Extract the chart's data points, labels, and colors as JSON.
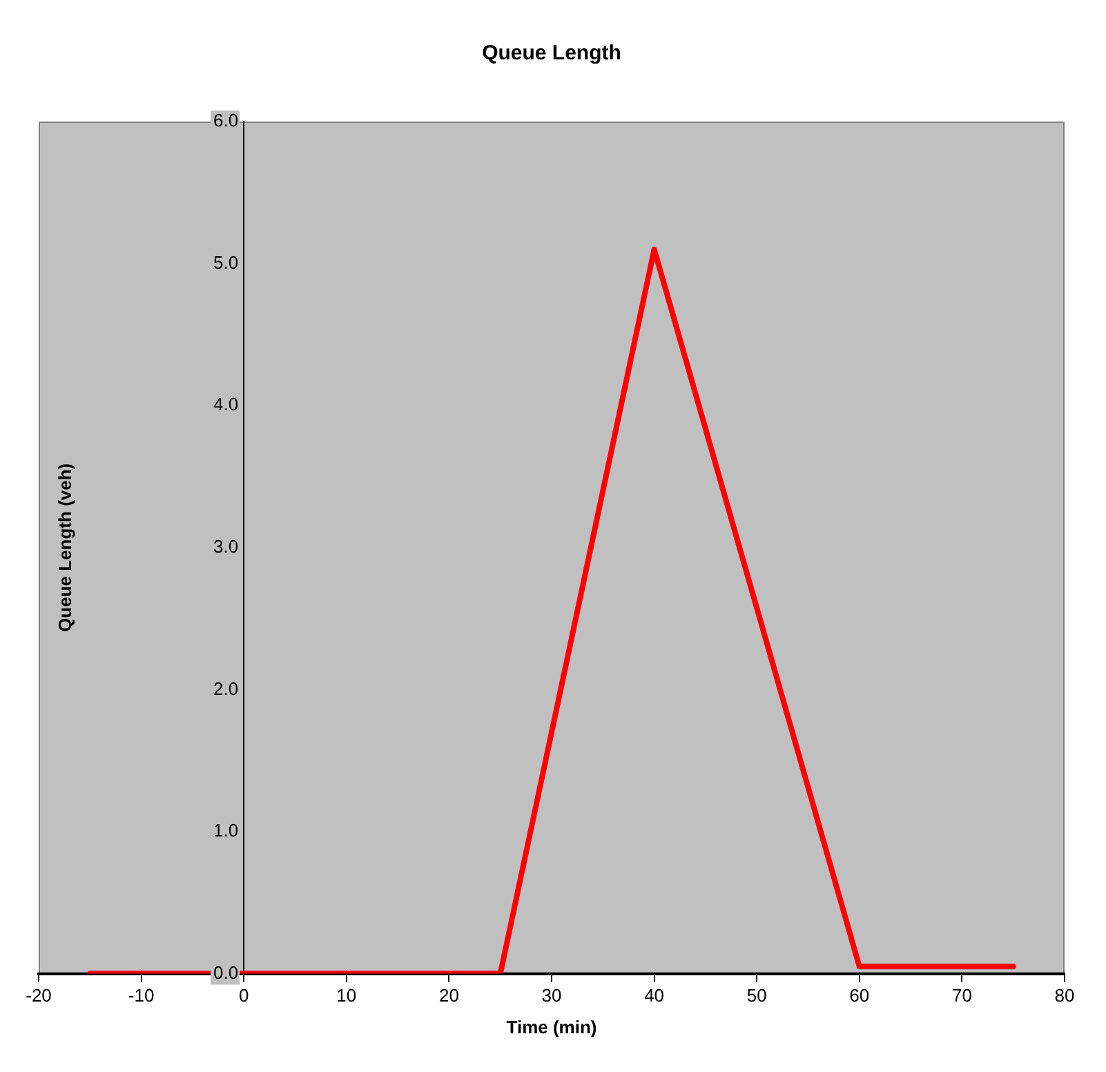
{
  "chart_data": {
    "type": "line",
    "title": "Queue Length",
    "xlabel": "Time (min)",
    "ylabel": "Queue Length (veh)",
    "x": [
      -15,
      25,
      40,
      60,
      75
    ],
    "series": [
      {
        "color": "#ff0000",
        "values": [
          0,
          0,
          5.1,
          0.05,
          0.05
        ]
      }
    ],
    "xlim": [
      -20,
      80
    ],
    "xticks": [
      -20,
      -10,
      0,
      10,
      20,
      30,
      40,
      50,
      60,
      70,
      80
    ],
    "ylim": [
      0,
      6
    ],
    "yticks": [
      {
        "value": 0,
        "label": "0.0"
      },
      {
        "value": 1,
        "label": "1.0"
      },
      {
        "value": 2,
        "label": "2.0"
      },
      {
        "value": 3,
        "label": "3.0"
      },
      {
        "value": 4,
        "label": "4.0"
      },
      {
        "value": 5,
        "label": "5.0"
      },
      {
        "value": 6,
        "label": "6.0"
      }
    ],
    "grid": false,
    "legend": false,
    "marker": "none",
    "line_style": "solid"
  }
}
